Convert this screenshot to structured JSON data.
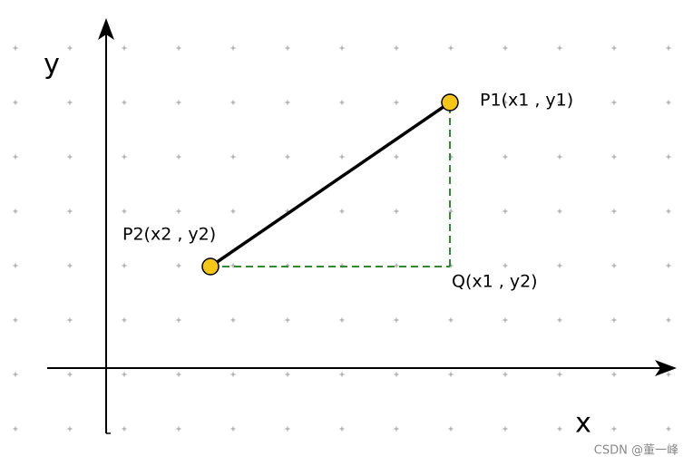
{
  "axes": {
    "x_label": "x",
    "y_label": "y"
  },
  "points": [
    {
      "label": "P1(x1 , y1)"
    },
    {
      "label": "P2(x2 , y2)"
    },
    {
      "label": "Q(x1 , y2)"
    }
  ],
  "watermark": "CSDN @董一峰"
}
